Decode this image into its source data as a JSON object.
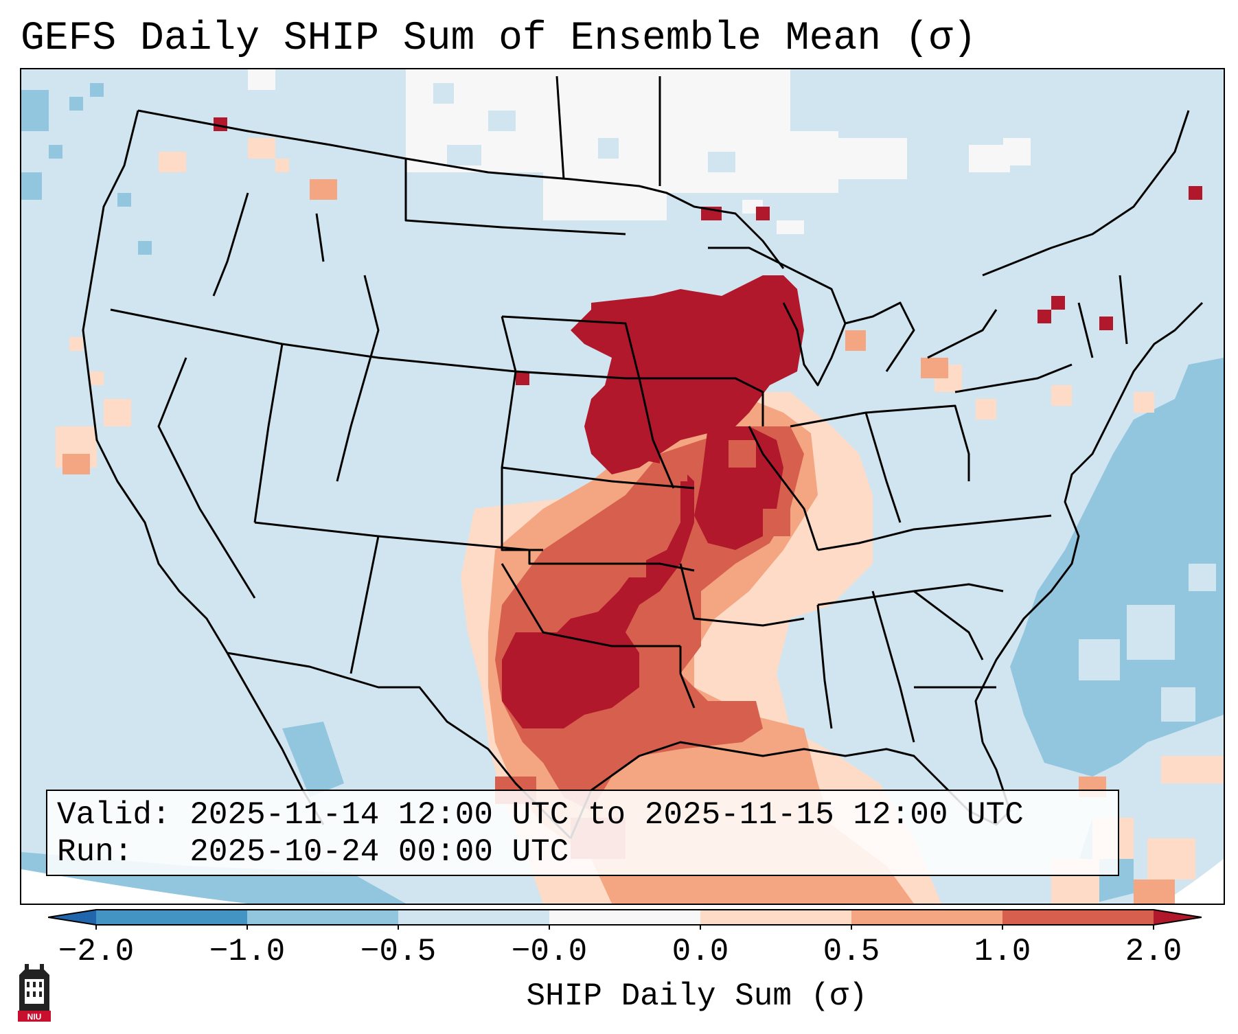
{
  "title": "GEFS Daily SHIP Sum of Ensemble Mean (σ)",
  "info": {
    "valid_label": "Valid:",
    "valid_value": "2025-11-14 12:00 UTC to 2025-11-15 12:00 UTC",
    "run_label": "Run:",
    "run_value": "2025-10-24 00:00 UTC"
  },
  "colorbar": {
    "label": "SHIP Daily Sum (σ)",
    "ticks": [
      "−2.0",
      "−1.0",
      "−0.5",
      "−0.0",
      "0.0",
      "0.5",
      "1.0",
      "2.0"
    ],
    "colors": [
      "#2166ac",
      "#4393c3",
      "#92c5de",
      "#d1e5f0",
      "#f7f7f7",
      "#fddbc7",
      "#f4a582",
      "#d6604d",
      "#b2182b"
    ],
    "extend": "both"
  },
  "logo": {
    "name": "niu-logo",
    "text": "NIU"
  },
  "map": {
    "projection": "lambert-conformal",
    "region": "contiguous-united-states",
    "colors": {
      "ocean_base": "#d1e5f0",
      "neg_light": "#f7f7f7",
      "neg_mid": "#92c5de",
      "pos_light": "#fddbc7",
      "pos_mid": "#f4a582",
      "pos_high": "#d6604d",
      "pos_max": "#b2182b"
    }
  }
}
